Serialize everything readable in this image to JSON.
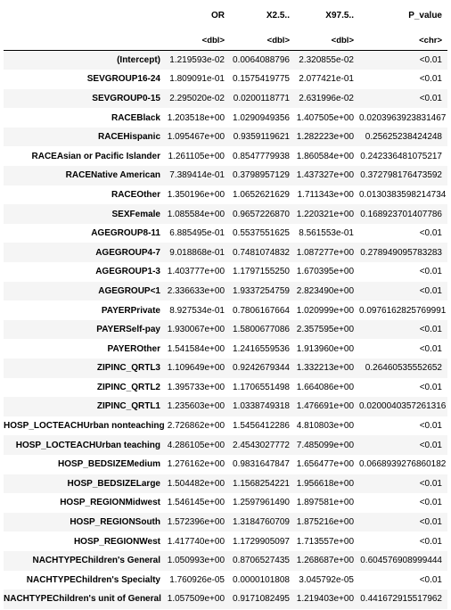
{
  "table": {
    "columns": [
      "",
      "OR",
      "X2.5..",
      "X97.5..",
      "P_value"
    ],
    "types": [
      "",
      "<dbl>",
      "<dbl>",
      "<dbl>",
      "<chr>"
    ],
    "rows": [
      [
        "(Intercept)",
        "1.219593e-02",
        "0.0064088796",
        "2.320855e-02",
        "<0.01"
      ],
      [
        "SEVGROUP16-24",
        "1.809091e-01",
        "0.1575419775",
        "2.077421e-01",
        "<0.01"
      ],
      [
        "SEVGROUP0-15",
        "2.295020e-02",
        "0.0200118771",
        "2.631996e-02",
        "<0.01"
      ],
      [
        "RACEBlack",
        "1.203518e+00",
        "1.0290949356",
        "1.407505e+00",
        "0.0203963923831467"
      ],
      [
        "RACEHispanic",
        "1.095467e+00",
        "0.9359119621",
        "1.282223e+00",
        "0.25625238424248"
      ],
      [
        "RACEAsian or Pacific Islander",
        "1.261105e+00",
        "0.8547779938",
        "1.860584e+00",
        "0.242336481075217"
      ],
      [
        "RACENative American",
        "7.389414e-01",
        "0.3798957129",
        "1.437327e+00",
        "0.372798176473592"
      ],
      [
        "RACEOther",
        "1.350196e+00",
        "1.0652621629",
        "1.711343e+00",
        "0.0130383598214734"
      ],
      [
        "SEXFemale",
        "1.085584e+00",
        "0.9657226870",
        "1.220321e+00",
        "0.168923701407786"
      ],
      [
        "AGEGROUP8-11",
        "6.885495e-01",
        "0.5537551625",
        "8.561553e-01",
        "<0.01"
      ],
      [
        "AGEGROUP4-7",
        "9.018868e-01",
        "0.7481074832",
        "1.087277e+00",
        "0.278949095783283"
      ],
      [
        "AGEGROUP1-3",
        "1.403777e+00",
        "1.1797155250",
        "1.670395e+00",
        "<0.01"
      ],
      [
        "AGEGROUP<1",
        "2.336633e+00",
        "1.9337254759",
        "2.823490e+00",
        "<0.01"
      ],
      [
        "PAYERPrivate",
        "8.927534e-01",
        "0.7806167664",
        "1.020999e+00",
        "0.0976162825769991"
      ],
      [
        "PAYERSelf-pay",
        "1.930067e+00",
        "1.5800677086",
        "2.357595e+00",
        "<0.01"
      ],
      [
        "PAYEROther",
        "1.541584e+00",
        "1.2416559536",
        "1.913960e+00",
        "<0.01"
      ],
      [
        "ZIPINC_QRTL3",
        "1.109649e+00",
        "0.9242679344",
        "1.332213e+00",
        "0.26460535552652"
      ],
      [
        "ZIPINC_QRTL2",
        "1.395733e+00",
        "1.1706551498",
        "1.664086e+00",
        "<0.01"
      ],
      [
        "ZIPINC_QRTL1",
        "1.235603e+00",
        "1.0338749318",
        "1.476691e+00",
        "0.0200040357261316"
      ],
      [
        "HOSP_LOCTEACHUrban nonteaching",
        "2.726862e+00",
        "1.5456412286",
        "4.810803e+00",
        "<0.01"
      ],
      [
        "HOSP_LOCTEACHUrban teaching",
        "4.286105e+00",
        "2.4543027772",
        "7.485099e+00",
        "<0.01"
      ],
      [
        "HOSP_BEDSIZEMedium",
        "1.276162e+00",
        "0.9831647847",
        "1.656477e+00",
        "0.0668939276860182"
      ],
      [
        "HOSP_BEDSIZELarge",
        "1.504482e+00",
        "1.1568254221",
        "1.956618e+00",
        "<0.01"
      ],
      [
        "HOSP_REGIONMidwest",
        "1.546145e+00",
        "1.2597961490",
        "1.897581e+00",
        "<0.01"
      ],
      [
        "HOSP_REGIONSouth",
        "1.572396e+00",
        "1.3184760709",
        "1.875216e+00",
        "<0.01"
      ],
      [
        "HOSP_REGIONWest",
        "1.417740e+00",
        "1.1729905097",
        "1.713557e+00",
        "<0.01"
      ],
      [
        "NACHTYPEChildren's General",
        "1.050993e+00",
        "0.8706527435",
        "1.268687e+00",
        "0.604576908999444"
      ],
      [
        "NACHTYPEChildren's Specialty",
        "1.760926e-05",
        "0.0000101808",
        "3.045792e-05",
        "<0.01"
      ],
      [
        "NACHTYPEChildren's unit of General",
        "1.057509e+00",
        "0.9171082495",
        "1.219403e+00",
        "0.441672915517962"
      ]
    ]
  }
}
